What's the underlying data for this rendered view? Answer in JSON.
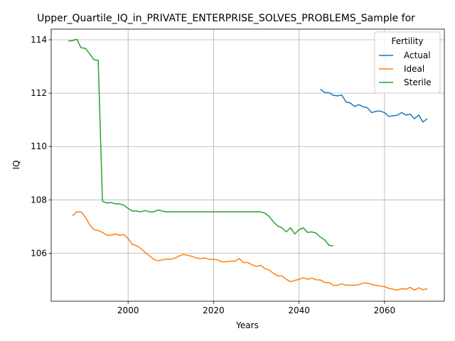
{
  "chart_data": {
    "type": "line",
    "title": "Upper_Quartile_IQ_in_PRIVATE_ENTERPRISE_SOLVES_PROBLEMS_Sample for",
    "xlabel": "Years",
    "ylabel": "IQ",
    "xlim": [
      1982,
      2074
    ],
    "ylim": [
      104.2,
      114.4
    ],
    "xticks": [
      2000,
      2020,
      2040,
      2060
    ],
    "yticks": [
      106,
      108,
      110,
      112,
      114
    ],
    "grid": true,
    "legend": {
      "title": "Fertility",
      "placement": "top-right"
    },
    "series": [
      {
        "name": "Actual",
        "color": "#1f77b4",
        "points": [
          [
            2045,
            112.15
          ],
          [
            2046,
            112.02
          ],
          [
            2047,
            112.02
          ],
          [
            2048,
            111.92
          ],
          [
            2049,
            111.9
          ],
          [
            2050,
            111.93
          ],
          [
            2051,
            111.67
          ],
          [
            2052,
            111.63
          ],
          [
            2053,
            111.5
          ],
          [
            2054,
            111.57
          ],
          [
            2055,
            111.49
          ],
          [
            2056,
            111.45
          ],
          [
            2057,
            111.27
          ],
          [
            2058,
            111.32
          ],
          [
            2059,
            111.33
          ],
          [
            2060,
            111.27
          ],
          [
            2061,
            111.13
          ],
          [
            2062,
            111.15
          ],
          [
            2063,
            111.17
          ],
          [
            2064,
            111.27
          ],
          [
            2065,
            111.18
          ],
          [
            2066,
            111.21
          ],
          [
            2067,
            111.04
          ],
          [
            2068,
            111.18
          ],
          [
            2069,
            110.92
          ],
          [
            2070,
            111.04
          ]
        ]
      },
      {
        "name": "Ideal",
        "color": "#ff7f0e",
        "points": [
          [
            1987,
            107.4
          ],
          [
            1988,
            107.55
          ],
          [
            1989,
            107.55
          ],
          [
            1990,
            107.35
          ],
          [
            1991,
            107.07
          ],
          [
            1992,
            106.88
          ],
          [
            1993,
            106.85
          ],
          [
            1994,
            106.78
          ],
          [
            1995,
            106.68
          ],
          [
            1996,
            106.67
          ],
          [
            1997,
            106.72
          ],
          [
            1998,
            106.67
          ],
          [
            1999,
            106.7
          ],
          [
            2000,
            106.55
          ],
          [
            2001,
            106.33
          ],
          [
            2002,
            106.28
          ],
          [
            2003,
            106.17
          ],
          [
            2004,
            106.03
          ],
          [
            2005,
            105.9
          ],
          [
            2006,
            105.77
          ],
          [
            2007,
            105.72
          ],
          [
            2008,
            105.75
          ],
          [
            2009,
            105.78
          ],
          [
            2010,
            105.77
          ],
          [
            2011,
            105.82
          ],
          [
            2012,
            105.9
          ],
          [
            2013,
            105.95
          ],
          [
            2014,
            105.92
          ],
          [
            2015,
            105.88
          ],
          [
            2016,
            105.82
          ],
          [
            2017,
            105.8
          ],
          [
            2018,
            105.82
          ],
          [
            2019,
            105.77
          ],
          [
            2020,
            105.77
          ],
          [
            2021,
            105.75
          ],
          [
            2022,
            105.67
          ],
          [
            2023,
            105.68
          ],
          [
            2024,
            105.7
          ],
          [
            2025,
            105.7
          ],
          [
            2026,
            105.8
          ],
          [
            2027,
            105.65
          ],
          [
            2028,
            105.65
          ],
          [
            2029,
            105.57
          ],
          [
            2030,
            105.5
          ],
          [
            2031,
            105.55
          ],
          [
            2032,
            105.42
          ],
          [
            2033,
            105.37
          ],
          [
            2034,
            105.25
          ],
          [
            2035,
            105.15
          ],
          [
            2036,
            105.15
          ],
          [
            2037,
            105.02
          ],
          [
            2038,
            104.93
          ],
          [
            2039,
            104.98
          ],
          [
            2040,
            105.02
          ],
          [
            2041,
            105.08
          ],
          [
            2042,
            105.02
          ],
          [
            2043,
            105.07
          ],
          [
            2044,
            105.0
          ],
          [
            2045,
            105.0
          ],
          [
            2046,
            104.9
          ],
          [
            2047,
            104.9
          ],
          [
            2048,
            104.8
          ],
          [
            2049,
            104.8
          ],
          [
            2050,
            104.85
          ],
          [
            2051,
            104.8
          ],
          [
            2052,
            104.8
          ],
          [
            2053,
            104.8
          ],
          [
            2054,
            104.82
          ],
          [
            2055,
            104.88
          ],
          [
            2056,
            104.88
          ],
          [
            2057,
            104.83
          ],
          [
            2058,
            104.8
          ],
          [
            2059,
            104.77
          ],
          [
            2060,
            104.75
          ],
          [
            2061,
            104.68
          ],
          [
            2062,
            104.65
          ],
          [
            2063,
            104.62
          ],
          [
            2064,
            104.67
          ],
          [
            2065,
            104.65
          ],
          [
            2066,
            104.72
          ],
          [
            2067,
            104.62
          ],
          [
            2068,
            104.7
          ],
          [
            2069,
            104.63
          ],
          [
            2070,
            104.67
          ]
        ]
      },
      {
        "name": "Sterile",
        "color": "#2ca02c",
        "points": [
          [
            1986,
            113.95
          ],
          [
            1987,
            113.97
          ],
          [
            1988,
            114.02
          ],
          [
            1989,
            113.7
          ],
          [
            1990,
            113.68
          ],
          [
            1991,
            113.48
          ],
          [
            1992,
            113.25
          ],
          [
            1993,
            113.23
          ],
          [
            1994,
            107.95
          ],
          [
            1995,
            107.88
          ],
          [
            1996,
            107.9
          ],
          [
            1997,
            107.85
          ],
          [
            1998,
            107.85
          ],
          [
            1999,
            107.8
          ],
          [
            2000,
            107.68
          ],
          [
            2001,
            107.58
          ],
          [
            2002,
            107.58
          ],
          [
            2003,
            107.55
          ],
          [
            2004,
            107.6
          ],
          [
            2005,
            107.55
          ],
          [
            2006,
            107.55
          ],
          [
            2007,
            107.62
          ],
          [
            2008,
            107.58
          ],
          [
            2009,
            107.55
          ],
          [
            2010,
            107.55
          ],
          [
            2015,
            107.55
          ],
          [
            2020,
            107.55
          ],
          [
            2025,
            107.55
          ],
          [
            2030,
            107.55
          ],
          [
            2031,
            107.55
          ],
          [
            2032,
            107.5
          ],
          [
            2033,
            107.38
          ],
          [
            2034,
            107.18
          ],
          [
            2035,
            107.02
          ],
          [
            2036,
            106.95
          ],
          [
            2037,
            106.8
          ],
          [
            2038,
            106.95
          ],
          [
            2039,
            106.72
          ],
          [
            2040,
            106.88
          ],
          [
            2041,
            106.95
          ],
          [
            2042,
            106.78
          ],
          [
            2043,
            106.8
          ],
          [
            2044,
            106.75
          ],
          [
            2045,
            106.6
          ],
          [
            2046,
            106.5
          ],
          [
            2047,
            106.3
          ],
          [
            2048,
            106.27
          ]
        ]
      }
    ]
  }
}
